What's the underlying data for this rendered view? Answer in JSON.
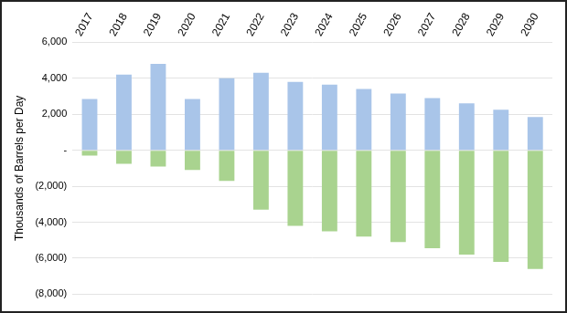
{
  "chart_data": {
    "type": "bar",
    "y_label": "Thousands of Barrels per Day",
    "categories": [
      "2017",
      "2018",
      "2019",
      "2020",
      "2021",
      "2022",
      "2023",
      "2024",
      "2025",
      "2026",
      "2027",
      "2028",
      "2029",
      "2030"
    ],
    "series": [
      {
        "color": "#a9c5e9",
        "values": [
          2850,
          4200,
          4800,
          2850,
          4000,
          4300,
          3800,
          3650,
          3400,
          3150,
          2900,
          2600,
          2250,
          1850
        ]
      },
      {
        "color": "#a9d38f",
        "values": [
          -300,
          -750,
          -900,
          -1100,
          -1700,
          -3300,
          -4200,
          -4500,
          -4800,
          -5100,
          -5450,
          -5800,
          -6200,
          -6600
        ]
      }
    ],
    "stacked": true,
    "grid": true,
    "ylim": [
      -8000,
      6000
    ],
    "yticks": [
      {
        "value": 6000,
        "label": "6,000"
      },
      {
        "value": 4000,
        "label": "4,000"
      },
      {
        "value": 2000,
        "label": "2,000"
      },
      {
        "value": 0,
        "label": "-"
      },
      {
        "value": -2000,
        "label": "(2,000)"
      },
      {
        "value": -4000,
        "label": "(4,000)"
      },
      {
        "value": -6000,
        "label": "(6,000)"
      },
      {
        "value": -8000,
        "label": "(8,000)"
      }
    ]
  }
}
